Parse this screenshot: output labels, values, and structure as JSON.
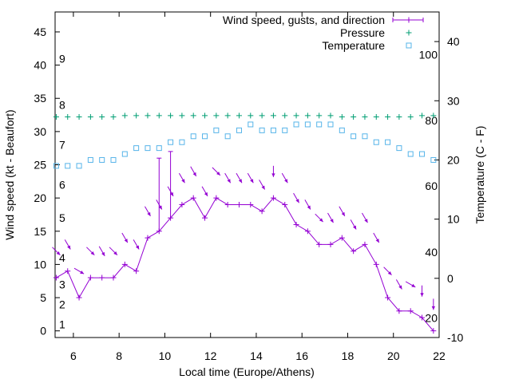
{
  "chart_data": {
    "type": "line",
    "xlabel": "Local time (Europe/Athens)",
    "ylabel": "Wind speed (kt - Beaufort)",
    "y2label": "Temperature (C - F)",
    "xlim": [
      5.2,
      22
    ],
    "ylim": [
      -1,
      48
    ],
    "y2lim": [
      -10,
      45
    ],
    "xticks": [
      6,
      8,
      10,
      12,
      14,
      16,
      18,
      20,
      22
    ],
    "yticks": [
      0,
      5,
      10,
      15,
      20,
      25,
      30,
      35,
      40,
      45
    ],
    "y2ticks": [
      -10,
      0,
      10,
      20,
      30,
      40
    ],
    "beaufort_labels": [
      {
        "label": "1",
        "y": 1
      },
      {
        "label": "2",
        "y": 4
      },
      {
        "label": "3",
        "y": 7
      },
      {
        "label": "4",
        "y": 11
      },
      {
        "label": "5",
        "y": 17
      },
      {
        "label": "6",
        "y": 22
      },
      {
        "label": "7",
        "y": 28
      },
      {
        "label": "8",
        "y": 34
      },
      {
        "label": "9",
        "y": 41
      }
    ],
    "fahrenheit_labels": [
      {
        "label": "20",
        "t": -6.7
      },
      {
        "label": "40",
        "t": 4.4
      },
      {
        "label": "60",
        "t": 15.6
      },
      {
        "label": "80",
        "t": 26.7
      },
      {
        "label": "100",
        "t": 37.8
      }
    ],
    "legend_position": "top-right",
    "grid": false,
    "series": [
      {
        "name": "Wind speed, gusts, and direction",
        "color": "#9400d3",
        "x": [
          5.25,
          5.75,
          6.25,
          6.75,
          7.25,
          7.75,
          8.25,
          8.75,
          9.25,
          9.75,
          10.25,
          10.75,
          11.25,
          11.75,
          12.25,
          12.75,
          13.25,
          13.75,
          14.25,
          14.75,
          15.25,
          15.75,
          16.25,
          16.75,
          17.25,
          17.75,
          18.25,
          18.75,
          19.25,
          19.75,
          20.25,
          20.75,
          21.25,
          21.75
        ],
        "values": [
          8,
          9,
          5,
          8,
          8,
          8,
          10,
          9,
          14,
          15,
          17,
          19,
          20,
          17,
          20,
          19,
          19,
          19,
          18,
          20,
          19,
          16,
          15,
          13,
          13,
          14,
          12,
          13,
          10,
          5,
          3,
          3,
          2,
          0
        ],
        "gusts": [
          {
            "x": 9.75,
            "value": 26
          },
          {
            "x": 10.25,
            "value": 27
          }
        ],
        "direction_from_deg": [
          315,
          330,
          300,
          315,
          330,
          315,
          330,
          330,
          330,
          330,
          330,
          330,
          330,
          330,
          315,
          330,
          330,
          330,
          330,
          0,
          330,
          330,
          330,
          315,
          330,
          330,
          330,
          330,
          330,
          315,
          330,
          300,
          0,
          0
        ]
      },
      {
        "name": "Pressure",
        "color": "#009e73",
        "marker": "plus",
        "x": [
          5.25,
          5.75,
          6.25,
          6.75,
          7.25,
          7.75,
          8.25,
          8.75,
          9.25,
          9.75,
          10.25,
          10.75,
          11.25,
          11.75,
          12.25,
          12.75,
          13.25,
          13.75,
          14.25,
          14.75,
          15.25,
          15.75,
          16.25,
          16.75,
          17.25,
          17.75,
          18.25,
          18.75,
          19.25,
          19.75,
          20.25,
          20.75,
          21.25,
          21.75
        ],
        "values": [
          32.2,
          32.2,
          32.2,
          32.2,
          32.2,
          32.2,
          32.4,
          32.4,
          32.4,
          32.4,
          32.4,
          32.4,
          32.4,
          32.4,
          32.4,
          32.4,
          32.4,
          32.4,
          32.4,
          32.4,
          32.4,
          32.4,
          32.4,
          32.4,
          32.4,
          32.2,
          32.2,
          32.2,
          32.2,
          32.2,
          32.2,
          32.2,
          32.4,
          32.4
        ]
      },
      {
        "name": "Temperature",
        "color": "#56b4e9",
        "marker": "square",
        "axis": "right",
        "x": [
          5.25,
          5.75,
          6.25,
          6.75,
          7.25,
          7.75,
          8.25,
          8.75,
          9.25,
          9.75,
          10.25,
          10.75,
          11.25,
          11.75,
          12.25,
          12.75,
          13.25,
          13.75,
          14.25,
          14.75,
          15.25,
          15.75,
          16.25,
          16.75,
          17.25,
          17.75,
          18.25,
          18.75,
          19.25,
          19.75,
          20.25,
          20.75,
          21.25,
          21.75
        ],
        "values": [
          19,
          19,
          19,
          20,
          20,
          20,
          21,
          22,
          22,
          22,
          23,
          23,
          24,
          24,
          25,
          24,
          25,
          26,
          25,
          25,
          25,
          26,
          26,
          26,
          26,
          25,
          24,
          24,
          23,
          23,
          22,
          21,
          21,
          20
        ]
      }
    ]
  }
}
